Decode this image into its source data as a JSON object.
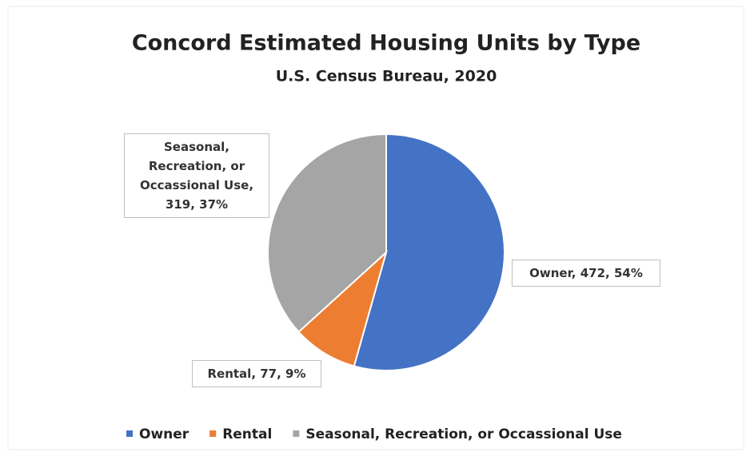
{
  "chart_data": {
    "type": "pie",
    "title": "Concord Estimated Housing Units by Type",
    "subtitle": "U.S. Census Bureau, 2020",
    "categories": [
      "Owner",
      "Rental",
      "Seasonal, Recreation, or Occassional Use"
    ],
    "values": [
      472,
      77,
      319
    ],
    "value_labels": [
      "Owner, 472, 54%",
      "Rental, 77, 9%",
      "Seasonal, Recreation, or Occassional Use, 319, 37%"
    ],
    "colors": [
      "#4472c4",
      "#ed7d31",
      "#a5a5a5"
    ],
    "legend": "bottom"
  }
}
